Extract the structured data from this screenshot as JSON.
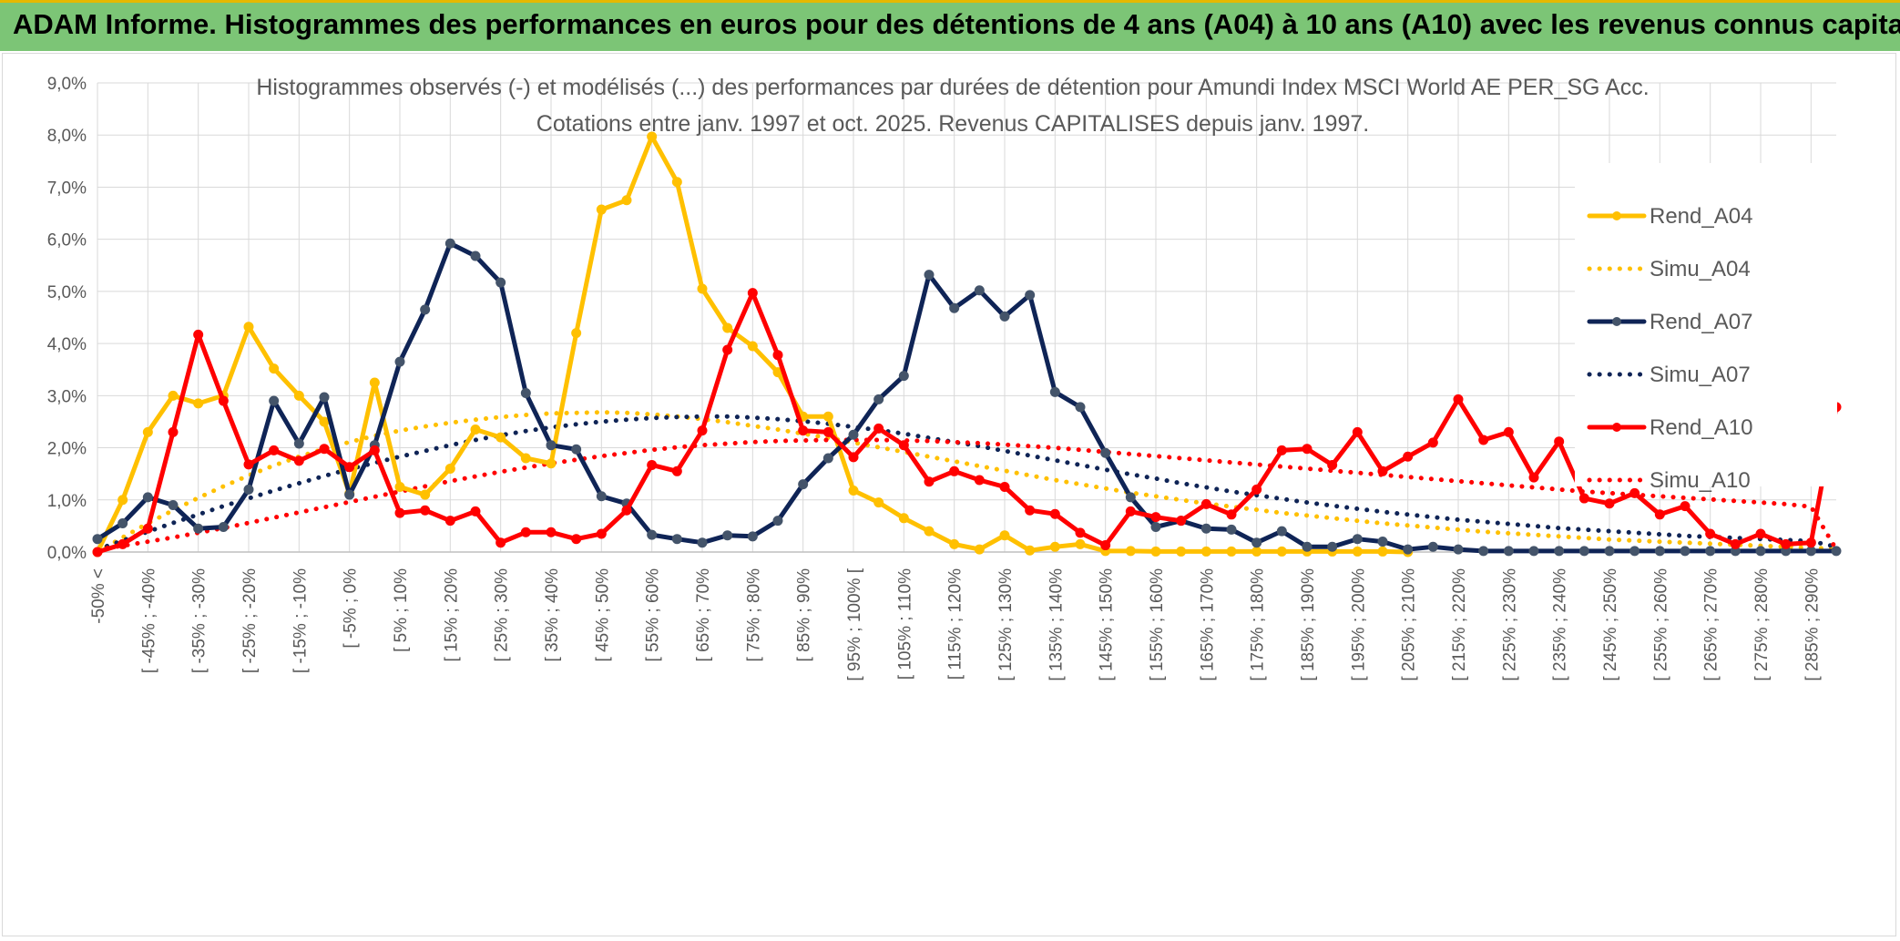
{
  "banner": {
    "title": "ADAM Informe. Histogrammes des performances en euros pour des détentions de 4 ans (A04) à 10 ans (A10) avec les revenus connus capitalisés"
  },
  "colors": {
    "banner_bg": "#7cc576",
    "rend_a04": "#ffc000",
    "rend_a07": "#0f2456",
    "rend_a10": "#ff0000",
    "grid": "#d9d9d9"
  },
  "chart_data": {
    "type": "line",
    "title": "Histogrammes observés (-) et modélisés (...) des performances par durées de détention pour Amundi Index MSCI World AE PER_SG Acc.",
    "subtitle": "Cotations entre janv. 1997 et oct. 2025. Revenus CAPITALISES depuis janv. 1997.",
    "xlabel": "",
    "ylabel": "",
    "ylim": [
      0,
      9
    ],
    "y_unit": "%",
    "y_ticks": [
      "0,0%",
      "1,0%",
      "2,0%",
      "3,0%",
      "4,0%",
      "5,0%",
      "6,0%",
      "7,0%",
      "8,0%",
      "9,0%"
    ],
    "grid": true,
    "legend_position": "right",
    "x_labels": [
      "-50% <",
      "[ -45% ; -40%",
      "[ -35% ; -30%",
      "[ -25% ; -20%",
      "[ -15% ; -10%",
      "[ -5% ; 0%",
      "[ 5% ; 10%",
      "[ 15% ; 20%",
      "[ 25% ; 30%",
      "[ 35% ; 40%",
      "[ 45% ; 50%",
      "[ 55% ; 60%",
      "[ 65% ; 70%",
      "[ 75% ; 80%",
      "[ 85% ; 90%",
      "[ 95% ; 100% [",
      "[ 105% ; 110%",
      "[ 115% ; 120%",
      "[ 125% ; 130%",
      "[ 135% ; 140%",
      "[ 145% ; 150%",
      "[ 155% ; 160%",
      "[ 165% ; 170%",
      "[ 175% ; 180%",
      "[ 185% ; 190%",
      "[ 195% ; 200%",
      "[ 205% ; 210%",
      "[ 215% ; 220%",
      "[ 225% ; 230%",
      "[ 235% ; 240%",
      "[ 245% ; 250%",
      "[ 255% ; 260%",
      "[ 265% ; 270%",
      "[ 275% ; 280%",
      "[ 285% ; 290%"
    ],
    "x_start": -50,
    "x_step": 5,
    "series": [
      {
        "name": "Rend_A04",
        "style": "solid",
        "color": "#ffc000",
        "markers": true,
        "values": [
          0.0,
          1.0,
          2.3,
          3.0,
          2.85,
          3.0,
          4.32,
          3.52,
          3.0,
          2.5,
          1.12,
          3.25,
          1.25,
          1.1,
          1.6,
          2.35,
          2.2,
          1.8,
          1.7,
          4.2,
          6.57,
          6.75,
          7.97,
          7.1,
          5.05,
          4.3,
          3.95,
          3.45,
          2.6,
          2.6,
          1.18,
          0.95,
          0.65,
          0.4,
          0.15,
          0.05,
          0.32,
          0.03,
          0.1,
          0.15,
          0.02,
          0.02,
          0.01,
          0.01,
          0.01,
          0.01,
          0.01,
          0.01,
          0.01,
          0.01,
          0.01,
          0.01,
          0.0
        ]
      },
      {
        "name": "Simu_A04",
        "style": "dotted",
        "color": "#ffc000",
        "markers": false,
        "values": [
          0.0,
          0.28,
          0.55,
          0.8,
          1.04,
          1.26,
          1.47,
          1.66,
          1.83,
          1.98,
          2.11,
          2.23,
          2.33,
          2.41,
          2.48,
          2.54,
          2.59,
          2.63,
          2.66,
          2.67,
          2.68,
          2.67,
          2.64,
          2.6,
          2.55,
          2.49,
          2.42,
          2.35,
          2.27,
          2.19,
          2.1,
          2.01,
          1.92,
          1.83,
          1.74,
          1.65,
          1.56,
          1.47,
          1.38,
          1.3,
          1.22,
          1.14,
          1.07,
          1.0,
          0.93,
          0.87,
          0.81,
          0.75,
          0.7,
          0.65,
          0.6,
          0.55,
          0.51,
          0.47,
          0.43,
          0.39,
          0.36,
          0.33,
          0.3,
          0.27,
          0.24,
          0.22,
          0.2,
          0.18,
          0.16,
          0.14,
          0.12,
          0.1,
          0.08,
          0.06
        ]
      },
      {
        "name": "Rend_A07",
        "style": "solid",
        "color": "#0f2456",
        "markers": true,
        "values": [
          0.25,
          0.55,
          1.05,
          0.9,
          0.45,
          0.48,
          1.2,
          2.9,
          2.08,
          2.97,
          1.1,
          2.05,
          3.65,
          4.65,
          5.92,
          5.68,
          5.17,
          3.05,
          2.05,
          1.97,
          1.07,
          0.93,
          0.33,
          0.25,
          0.18,
          0.32,
          0.3,
          0.6,
          1.3,
          1.8,
          2.25,
          2.93,
          3.38,
          5.32,
          4.68,
          5.02,
          4.52,
          4.93,
          3.07,
          2.78,
          1.9,
          1.05,
          0.48,
          0.6,
          0.45,
          0.43,
          0.18,
          0.4,
          0.1,
          0.1,
          0.25,
          0.2,
          0.05,
          0.1,
          0.05,
          0.02,
          0.02,
          0.02,
          0.02,
          0.02,
          0.02,
          0.02,
          0.02,
          0.02,
          0.02,
          0.02,
          0.02,
          0.02,
          0.02,
          0.02
        ]
      },
      {
        "name": "Simu_A07",
        "style": "dotted",
        "color": "#0f2456",
        "markers": false,
        "values": [
          0.05,
          0.22,
          0.39,
          0.56,
          0.72,
          0.88,
          1.03,
          1.18,
          1.32,
          1.46,
          1.59,
          1.71,
          1.83,
          1.94,
          2.05,
          2.15,
          2.24,
          2.32,
          2.39,
          2.45,
          2.5,
          2.54,
          2.57,
          2.59,
          2.6,
          2.6,
          2.58,
          2.55,
          2.51,
          2.46,
          2.4,
          2.34,
          2.27,
          2.19,
          2.11,
          2.03,
          1.94,
          1.85,
          1.76,
          1.67,
          1.58,
          1.49,
          1.41,
          1.32,
          1.24,
          1.16,
          1.09,
          1.02,
          0.95,
          0.89,
          0.83,
          0.77,
          0.72,
          0.67,
          0.62,
          0.58,
          0.54,
          0.5,
          0.46,
          0.43,
          0.4,
          0.37,
          0.34,
          0.31,
          0.29,
          0.27,
          0.25,
          0.23,
          0.21,
          0.1
        ]
      },
      {
        "name": "Rend_A10",
        "style": "solid",
        "color": "#ff0000",
        "markers": true,
        "values": [
          0.0,
          0.15,
          0.45,
          2.3,
          4.17,
          2.9,
          1.68,
          1.95,
          1.75,
          1.98,
          1.63,
          1.95,
          0.75,
          0.8,
          0.6,
          0.78,
          0.18,
          0.38,
          0.38,
          0.25,
          0.35,
          0.8,
          1.67,
          1.55,
          2.33,
          3.88,
          4.97,
          3.78,
          2.33,
          2.3,
          1.82,
          2.37,
          2.05,
          1.35,
          1.55,
          1.38,
          1.25,
          0.8,
          0.73,
          0.37,
          0.13,
          0.78,
          0.67,
          0.6,
          0.92,
          0.72,
          1.2,
          1.95,
          1.98,
          1.67,
          2.3,
          1.55,
          1.83,
          2.1,
          2.93,
          2.15,
          2.3,
          1.43,
          2.12,
          1.03,
          0.93,
          1.13,
          0.72,
          0.88,
          0.35,
          0.15,
          0.35,
          0.15,
          0.18,
          2.78
        ]
      },
      {
        "name": "Simu_A10",
        "style": "dotted",
        "color": "#ff0000",
        "markers": false,
        "values": [
          0.05,
          0.12,
          0.2,
          0.28,
          0.37,
          0.46,
          0.56,
          0.66,
          0.76,
          0.86,
          0.96,
          1.06,
          1.16,
          1.26,
          1.36,
          1.45,
          1.54,
          1.62,
          1.7,
          1.77,
          1.84,
          1.9,
          1.96,
          2.01,
          2.05,
          2.08,
          2.11,
          2.13,
          2.14,
          2.15,
          2.15,
          2.15,
          2.14,
          2.13,
          2.11,
          2.09,
          2.06,
          2.03,
          2.0,
          1.96,
          1.92,
          1.88,
          1.84,
          1.8,
          1.76,
          1.72,
          1.68,
          1.64,
          1.6,
          1.56,
          1.52,
          1.48,
          1.44,
          1.4,
          1.36,
          1.32,
          1.28,
          1.24,
          1.2,
          1.16,
          1.13,
          1.1,
          1.07,
          1.04,
          1.01,
          0.98,
          0.95,
          0.92,
          0.87,
          0.05
        ]
      }
    ]
  }
}
